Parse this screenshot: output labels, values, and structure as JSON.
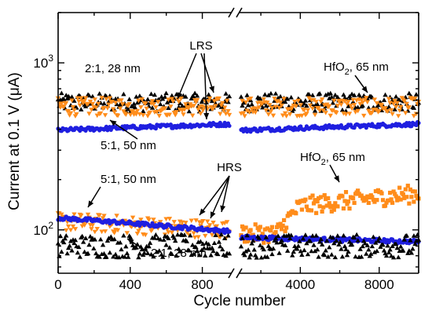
{
  "chart_data": {
    "type": "scatter",
    "xlabel": "Cycle number",
    "ylabel": "Current at 0.1 V (μA)",
    "yscale": "log",
    "ylim": [
      55,
      2000
    ],
    "grid": false,
    "y_ticks": [
      {
        "value": 100,
        "base": "10",
        "exp": "2"
      },
      {
        "value": 1000,
        "base": "10",
        "exp": "3"
      }
    ],
    "panels": [
      {
        "id": "left",
        "xlim": [
          0,
          950
        ],
        "xticks": [
          "0",
          "400",
          "800"
        ],
        "xtick_values": [
          0,
          400,
          800
        ]
      },
      {
        "id": "right",
        "xlim": [
          1000,
          10000
        ],
        "xticks": [
          "4000",
          "8000"
        ],
        "xtick_values": [
          4000,
          8000
        ]
      }
    ],
    "series": [
      {
        "color": "#000000",
        "marker": "triangle-up",
        "state": "LRS",
        "y_mean": 580,
        "x_left": [
          0,
          950
        ],
        "x_right": [
          1000,
          10000
        ]
      },
      {
        "color": "#ff8c1a",
        "marker": "triangle-down",
        "state": "LRS",
        "y_mean": 545,
        "x_left": [
          0,
          950
        ],
        "x_right": [
          1000,
          10000
        ]
      },
      {
        "color": "#1f1fe0",
        "marker": "circle",
        "state": "LRS",
        "y_start": 395,
        "y_end": 430,
        "x_left": [
          0,
          950
        ],
        "x_right": [
          1000,
          10000
        ]
      },
      {
        "color": "#ff8c1a",
        "marker": "triangle-down",
        "state": "HRS",
        "y_start": 112,
        "y_end": 100,
        "x_left": [
          0,
          950
        ]
      },
      {
        "color": "#1f1fe0",
        "marker": "circle",
        "state": "HRS",
        "y_start": 118,
        "y_end": 98,
        "x_left": [
          0,
          950
        ]
      },
      {
        "color": "#000000",
        "marker": "triangle-up",
        "state": "HRS",
        "y_mean": 80,
        "x_left": [
          0,
          950
        ]
      },
      {
        "color": "#ff8c1a",
        "marker": "square",
        "state": "HRS",
        "y_start": 95,
        "y_end": 165,
        "x_right": [
          1000,
          10000
        ]
      },
      {
        "color": "#1f1fe0",
        "marker": "circle",
        "state": "HRS",
        "y_start": 90,
        "y_end": 85,
        "x_right": [
          1000,
          10000
        ]
      },
      {
        "color": "#000000",
        "marker": "triangle-up",
        "state": "HRS",
        "y_mean": 80,
        "x_right": [
          1000,
          10000
        ]
      }
    ],
    "annotations": [
      {
        "id": "lrs",
        "text": "LRS"
      },
      {
        "id": "hrs",
        "text": "HRS"
      },
      {
        "id": "l-21-top",
        "text": "2:1, 28 nm"
      },
      {
        "id": "l-51-mid",
        "text": "5:1, 50 nm"
      },
      {
        "id": "l-51-low",
        "text": "5:1, 50 nm"
      },
      {
        "id": "l-21-low",
        "text": "2:1, 28 nm"
      },
      {
        "id": "hf-top",
        "prefix": "HfO",
        "sub": "2",
        "suffix": ", 65 nm"
      },
      {
        "id": "hf-mid",
        "prefix": "HfO",
        "sub": "2",
        "suffix": ", 65 nm"
      }
    ]
  }
}
